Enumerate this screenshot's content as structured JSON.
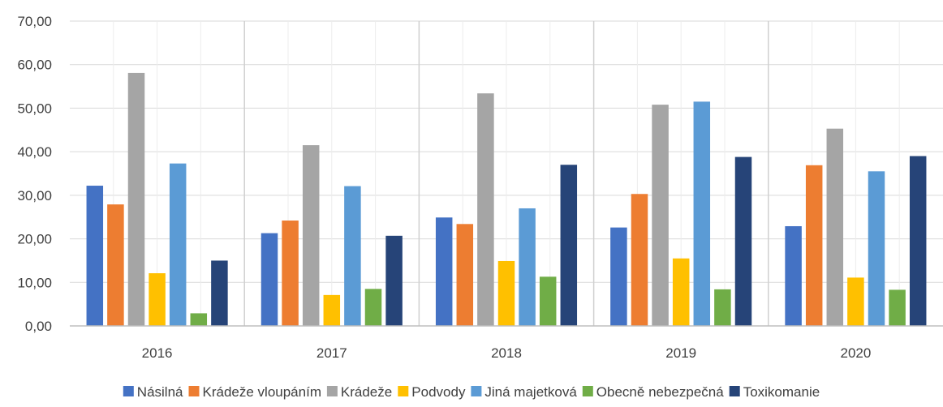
{
  "chart_data": {
    "type": "bar",
    "title": "",
    "xlabel": "",
    "ylabel": "",
    "ylim": [
      0,
      70
    ],
    "yticks": [
      "0,00",
      "10,00",
      "20,00",
      "30,00",
      "40,00",
      "50,00",
      "60,00",
      "70,00"
    ],
    "categories": [
      "2016",
      "2017",
      "2018",
      "2019",
      "2020"
    ],
    "grid": true,
    "legend_position": "bottom",
    "series": [
      {
        "name": "Násilná",
        "color": "#4472C4",
        "values": [
          32.2,
          21.3,
          24.9,
          22.6,
          22.9
        ]
      },
      {
        "name": "Krádeže vloupáním",
        "color": "#ED7D31",
        "values": [
          27.9,
          24.2,
          23.4,
          30.3,
          36.9
        ]
      },
      {
        "name": "Krádeže",
        "color": "#A5A5A5",
        "values": [
          58.1,
          41.5,
          53.4,
          50.8,
          45.3
        ]
      },
      {
        "name": "Podvody",
        "color": "#FFC000",
        "values": [
          12.1,
          7.1,
          14.9,
          15.5,
          11.1
        ]
      },
      {
        "name": "Jiná majetková",
        "color": "#5B9BD5",
        "values": [
          37.3,
          32.1,
          27.0,
          51.5,
          35.5
        ]
      },
      {
        "name": "Obecně nebezpečná",
        "color": "#70AD47",
        "values": [
          2.9,
          8.5,
          11.3,
          8.4,
          8.3
        ]
      },
      {
        "name": "Toxikomanie",
        "color": "#264478",
        "values": [
          15.0,
          20.7,
          37.0,
          38.8,
          39.0
        ]
      }
    ]
  }
}
